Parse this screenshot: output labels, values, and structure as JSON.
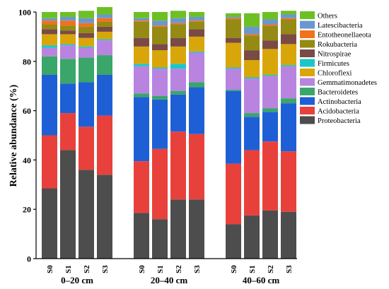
{
  "chart_data": {
    "type": "bar",
    "stacked": true,
    "ylabel": "Relative abundance (%)",
    "ylim": [
      0,
      100
    ],
    "yticks": [
      0,
      20,
      40,
      60,
      80,
      100
    ],
    "grid": false,
    "legend_position": "right",
    "series": [
      {
        "name": "Proteobacteria",
        "color": "#4d4d4d",
        "values": [
          28.5,
          44.0,
          36.0,
          34.0,
          18.5,
          16.0,
          24.0,
          24.0,
          14.0,
          17.5,
          19.5,
          19.0
        ]
      },
      {
        "name": "Acidobacteria",
        "color": "#e8413c",
        "values": [
          21.5,
          15.0,
          17.5,
          24.0,
          21.0,
          28.5,
          27.5,
          26.5,
          24.5,
          26.5,
          28.0,
          24.5
        ]
      },
      {
        "name": "Actinobacteria",
        "color": "#1f5fd6",
        "values": [
          24.5,
          12.0,
          18.0,
          16.5,
          26.0,
          20.0,
          15.0,
          19.0,
          29.5,
          13.5,
          12.0,
          19.5
        ]
      },
      {
        "name": "Bacteroidetes",
        "color": "#3aa66a",
        "values": [
          7.5,
          10.0,
          10.0,
          8.0,
          1.5,
          1.5,
          1.5,
          2.0,
          0.5,
          1.5,
          1.5,
          2.0
        ]
      },
      {
        "name": "Gemmatimonadetes",
        "color": "#b884e0",
        "values": [
          3.5,
          5.5,
          4.0,
          6.0,
          11.0,
          11.0,
          9.0,
          12.0,
          8.5,
          14.0,
          13.0,
          13.0
        ]
      },
      {
        "name": "Firmicutes",
        "color": "#1cc6c6",
        "values": [
          1.0,
          0.5,
          0.5,
          0.5,
          1.0,
          0.5,
          2.0,
          0.5,
          0.5,
          0.5,
          0.5,
          0.5
        ]
      },
      {
        "name": "Chloroflexi",
        "color": "#d9a60a",
        "values": [
          4.5,
          4.0,
          3.5,
          3.0,
          7.0,
          7.0,
          7.0,
          6.0,
          10.0,
          7.0,
          10.5,
          8.5
        ]
      },
      {
        "name": "Nitrospirae",
        "color": "#7a4a45",
        "values": [
          2.0,
          1.5,
          2.0,
          2.0,
          3.5,
          2.5,
          3.5,
          3.0,
          2.0,
          4.0,
          3.5,
          4.0
        ]
      },
      {
        "name": "Rokubacteria",
        "color": "#948a14",
        "values": [
          2.0,
          2.0,
          2.5,
          2.0,
          6.5,
          7.0,
          5.5,
          3.0,
          7.5,
          6.0,
          6.0,
          6.0
        ]
      },
      {
        "name": "Entotheonellaeota",
        "color": "#f2711c",
        "values": [
          1.5,
          2.0,
          1.5,
          1.5,
          0.5,
          0.5,
          0.5,
          0.5,
          0.5,
          0.5,
          0.5,
          0.5
        ]
      },
      {
        "name": "Latescibacteria",
        "color": "#6b97cf",
        "values": [
          1.0,
          1.5,
          2.0,
          1.5,
          1.0,
          2.0,
          2.0,
          1.5,
          0.5,
          3.0,
          2.0,
          1.5
        ]
      },
      {
        "name": "Others",
        "color": "#6cc024",
        "values": [
          2.5,
          2.0,
          3.0,
          3.0,
          2.5,
          3.5,
          3.0,
          2.0,
          1.5,
          5.5,
          3.0,
          1.5
        ]
      }
    ],
    "bar_labels": [
      "S0",
      "S1",
      "S2",
      "S3",
      "S0",
      "S1",
      "S2",
      "S3",
      "S0",
      "S1",
      "S2",
      "S3"
    ],
    "groups": [
      {
        "label": "0–20 cm",
        "bars": [
          0,
          1,
          2,
          3
        ]
      },
      {
        "label": "20–40 cm",
        "bars": [
          4,
          5,
          6,
          7
        ]
      },
      {
        "label": "40–60 cm",
        "bars": [
          8,
          9,
          10,
          11
        ]
      }
    ],
    "legend_order": [
      "Others",
      "Latescibacteria",
      "Entotheonellaeota",
      "Rokubacteria",
      "Nitrospirae",
      "Firmicutes",
      "Chloroflexi",
      "Gemmatimonadetes",
      "Bacteroidetes",
      "Actinobacteria",
      "Acidobacteria",
      "Proteobacteria"
    ]
  }
}
